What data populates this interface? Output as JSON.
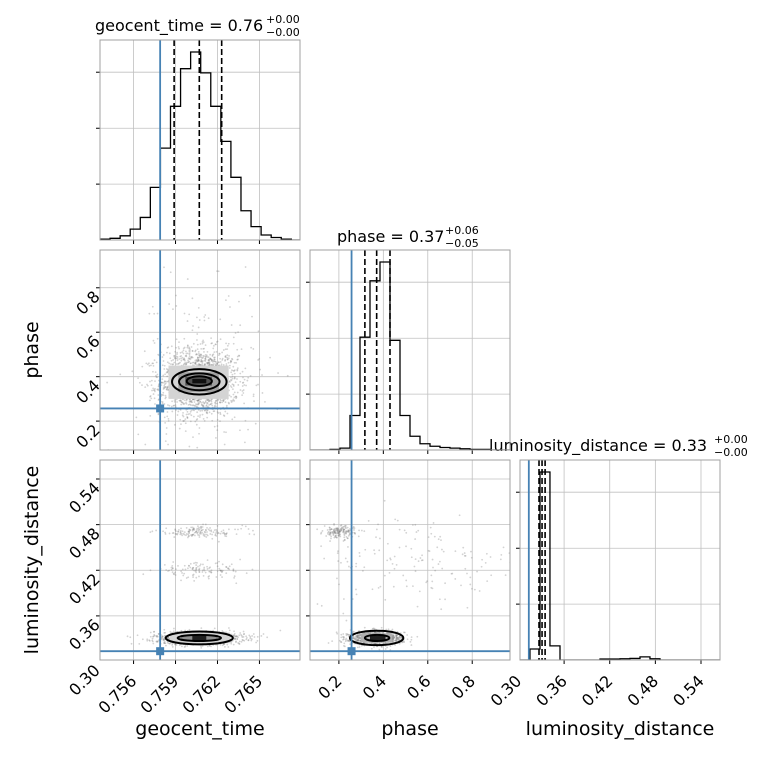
{
  "chart_data": {
    "type": "corner",
    "parameters": [
      "geocent_time",
      "phase",
      "luminosity_distance"
    ],
    "axis_labels": {
      "geocent_time": "geocent_time",
      "phase": "phase",
      "luminosity_distance": "luminosity_distance"
    },
    "colors": {
      "truth": "#4682b4",
      "hist": "#000000",
      "grid": "#c0c0c0",
      "points": "#808080"
    },
    "grid": true,
    "ranges": {
      "geocent_time": [
        0.7536,
        0.7679
      ],
      "phase": [
        0.07,
        0.97
      ],
      "luminosity_distance": [
        0.302,
        0.565
      ]
    },
    "ticks": {
      "geocent_time": [
        "0.756",
        "0.759",
        "0.762",
        "0.765"
      ],
      "phase": [
        "0.2",
        "0.4",
        "0.6",
        "0.8"
      ],
      "luminosity_distance": [
        "0.30",
        "0.36",
        "0.42",
        "0.48",
        "0.54"
      ]
    },
    "truths": {
      "geocent_time": 0.7579,
      "phase": 0.257,
      "luminosity_distance": 0.3136
    },
    "titles": [
      {
        "param": "geocent_time",
        "prefix": "geocent_time = 0.76",
        "plus": "+0.00",
        "minus": "−0.00"
      },
      {
        "param": "phase",
        "prefix": "phase = 0.37",
        "plus": "+0.06",
        "minus": "−0.05"
      },
      {
        "param": "luminosity_distance",
        "prefix": "luminosity_distance = 0.33",
        "plus": "+0.00",
        "minus": "−0.00"
      }
    ],
    "quantiles": {
      "geocent_time": [
        0.7589,
        0.7607,
        0.7623
      ],
      "phase": [
        0.317,
        0.37,
        0.43
      ],
      "luminosity_distance": [
        0.327,
        0.331,
        0.335
      ]
    },
    "histograms": {
      "geocent_time": {
        "edges": [
          0.7536,
          0.75432,
          0.75504,
          0.75576,
          0.75648,
          0.7572,
          0.75792,
          0.75864,
          0.75936,
          0.76008,
          0.7608,
          0.76152,
          0.76224,
          0.76296,
          0.76368,
          0.7644,
          0.76512,
          0.76584,
          0.76656,
          0.76728,
          0.768
        ],
        "counts": [
          1,
          2,
          5,
          13,
          27,
          63,
          110,
          160,
          205,
          225,
          200,
          160,
          118,
          75,
          35,
          16,
          6,
          3,
          1,
          0
        ]
      },
      "phase": {
        "edges": [
          0.07,
          0.115,
          0.16,
          0.205,
          0.25,
          0.295,
          0.34,
          0.385,
          0.43,
          0.475,
          0.52,
          0.565,
          0.61,
          0.655,
          0.7,
          0.745,
          0.79,
          0.835,
          0.88,
          0.925,
          0.97
        ],
        "counts": [
          0,
          0,
          1,
          3,
          55,
          180,
          270,
          300,
          175,
          55,
          22,
          10,
          6,
          4,
          3,
          2,
          1,
          1,
          0,
          0
        ]
      },
      "luminosity_distance": {
        "edges": [
          0.302,
          0.3151,
          0.3283,
          0.3414,
          0.3546,
          0.3677,
          0.3809,
          0.394,
          0.4072,
          0.4203,
          0.4335,
          0.4466,
          0.4598,
          0.4729,
          0.4861,
          0.4992,
          0.5124,
          0.5255,
          0.5387,
          0.5518,
          0.565
        ],
        "counts": [
          0,
          35,
          600,
          45,
          0,
          0,
          0,
          0,
          3,
          3,
          4,
          5,
          10,
          4,
          0,
          0,
          0,
          0,
          0,
          0
        ]
      }
    },
    "scatter_clusters": [
      {
        "x": "geocent_time",
        "y": "phase",
        "n": 1500,
        "mx": 0.7607,
        "sx": 0.0014,
        "my": 0.375,
        "sy": 0.075
      },
      {
        "x": "geocent_time",
        "y": "phase",
        "n": 250,
        "mx": 0.7607,
        "sx": 0.0022,
        "my": 0.42,
        "sy": 0.19
      },
      {
        "x": "geocent_time",
        "y": "luminosity_distance",
        "n": 900,
        "mx": 0.7607,
        "sx": 0.0016,
        "my": 0.331,
        "sy": 0.0045
      },
      {
        "x": "geocent_time",
        "y": "luminosity_distance",
        "n": 150,
        "mx": 0.7607,
        "sx": 0.0016,
        "my": 0.47,
        "sy": 0.004
      },
      {
        "x": "geocent_time",
        "y": "luminosity_distance",
        "n": 120,
        "mx": 0.7607,
        "sx": 0.0016,
        "my": 0.42,
        "sy": 0.005
      },
      {
        "x": "phase",
        "y": "luminosity_distance",
        "n": 900,
        "mx": 0.37,
        "sx": 0.06,
        "my": 0.331,
        "sy": 0.0045
      },
      {
        "x": "phase",
        "y": "luminosity_distance",
        "n": 150,
        "mx": 0.2,
        "sx": 0.035,
        "my": 0.47,
        "sy": 0.004
      },
      {
        "x": "phase",
        "y": "luminosity_distance",
        "n": 160,
        "mx": 0.55,
        "sx": 0.25,
        "my": 0.43,
        "sy": 0.03
      }
    ],
    "contour_panels": [
      {
        "x": "geocent_time",
        "y": "phase",
        "blocks": [
          {
            "x0": 0.7585,
            "x1": 0.7628,
            "y0": 0.3,
            "y1": 0.45,
            "shade": "#d4d4d4"
          },
          {
            "x0": 0.7592,
            "x1": 0.7621,
            "y0": 0.33,
            "y1": 0.42,
            "shade": "#a0a0a0"
          },
          {
            "x0": 0.7597,
            "x1": 0.7616,
            "y0": 0.36,
            "y1": 0.4,
            "shade": "#505050"
          },
          {
            "x0": 0.7602,
            "x1": 0.7612,
            "y0": 0.37,
            "y1": 0.39,
            "shade": "#101010"
          }
        ],
        "ellipses": [
          {
            "cx": 0.7607,
            "cy": 0.377,
            "rx": 0.00195,
            "ry": 0.057
          },
          {
            "cx": 0.7607,
            "cy": 0.377,
            "rx": 0.00145,
            "ry": 0.038
          },
          {
            "cx": 0.7607,
            "cy": 0.38,
            "rx": 0.0009,
            "ry": 0.022
          }
        ]
      },
      {
        "x": "geocent_time",
        "y": "luminosity_distance",
        "blocks": [
          {
            "x0": 0.7586,
            "x1": 0.7629,
            "y0": 0.324,
            "y1": 0.338,
            "shade": "#d4d4d4"
          },
          {
            "x0": 0.7594,
            "x1": 0.762,
            "y0": 0.327,
            "y1": 0.335,
            "shade": "#909090"
          },
          {
            "x0": 0.7602,
            "x1": 0.7612,
            "y0": 0.328,
            "y1": 0.334,
            "shade": "#202020"
          }
        ],
        "ellipses": [
          {
            "cx": 0.7607,
            "cy": 0.331,
            "rx": 0.0024,
            "ry": 0.0085
          },
          {
            "cx": 0.7607,
            "cy": 0.331,
            "rx": 0.00155,
            "ry": 0.004
          }
        ]
      },
      {
        "x": "phase",
        "y": "luminosity_distance",
        "blocks": [
          {
            "x0": 0.3,
            "x1": 0.44,
            "y0": 0.325,
            "y1": 0.337,
            "shade": "#b0b0b0"
          },
          {
            "x0": 0.34,
            "x1": 0.41,
            "y0": 0.328,
            "y1": 0.334,
            "shade": "#202020"
          }
        ],
        "ellipses": [
          {
            "cx": 0.37,
            "cy": 0.331,
            "rx": 0.12,
            "ry": 0.0095
          },
          {
            "cx": 0.372,
            "cy": 0.331,
            "rx": 0.055,
            "ry": 0.004
          }
        ]
      }
    ]
  }
}
